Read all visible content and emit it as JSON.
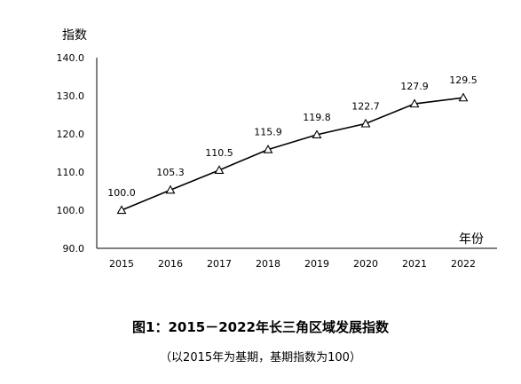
{
  "chart_data": {
    "type": "line",
    "title": "图1：2015－2022年长三角区域发展指数",
    "subtitle": "（以2015年为基期，基期指数为100）",
    "ylabel": "指数",
    "xlabel": "年份",
    "categories": [
      "2015",
      "2016",
      "2017",
      "2018",
      "2019",
      "2020",
      "2021",
      "2022"
    ],
    "values": [
      100.0,
      105.3,
      110.5,
      115.9,
      119.8,
      122.7,
      127.9,
      129.5
    ],
    "data_labels": [
      "100.0",
      "105.3",
      "110.5",
      "115.9",
      "119.8",
      "122.7",
      "127.9",
      "129.5"
    ],
    "ylim": [
      90,
      140
    ],
    "yticks": [
      "90.0",
      "100.0",
      "110.0",
      "120.0",
      "130.0",
      "140.0"
    ],
    "marker": "triangle-open",
    "grid": false,
    "line_color": "#000000"
  }
}
